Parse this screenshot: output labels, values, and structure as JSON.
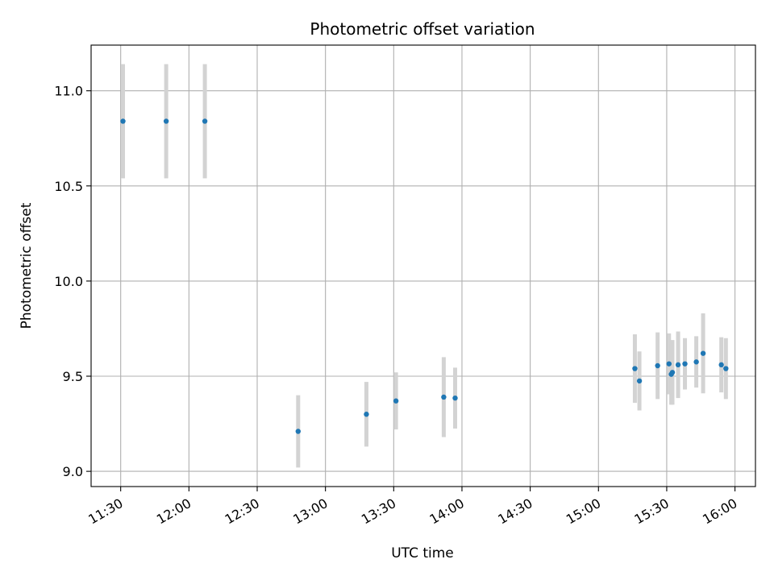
{
  "chart_data": {
    "type": "scatter",
    "title": "Photometric offset variation",
    "xlabel": "UTC time",
    "ylabel": "Photometric offset",
    "x_ticks": [
      "11:30",
      "12:00",
      "12:30",
      "13:00",
      "13:30",
      "14:00",
      "14:30",
      "15:00",
      "15:30",
      "16:00"
    ],
    "y_ticks": [
      "9.0",
      "9.5",
      "10.0",
      "10.5",
      "11.0"
    ],
    "xlim": [
      "11:17",
      "16:09"
    ],
    "ylim": [
      8.92,
      11.24
    ],
    "grid": true,
    "point_color": "#1f77b4",
    "errorbar_color": "#d3d3d3",
    "points": [
      {
        "x": "11:31",
        "y": 10.84,
        "err": 0.3
      },
      {
        "x": "11:50",
        "y": 10.84,
        "err": 0.3
      },
      {
        "x": "12:07",
        "y": 10.84,
        "err": 0.3
      },
      {
        "x": "12:48",
        "y": 9.21,
        "err": 0.19
      },
      {
        "x": "13:18",
        "y": 9.3,
        "err": 0.17
      },
      {
        "x": "13:31",
        "y": 9.37,
        "err": 0.15
      },
      {
        "x": "13:52",
        "y": 9.39,
        "err": 0.21
      },
      {
        "x": "13:57",
        "y": 9.385,
        "err": 0.16
      },
      {
        "x": "15:16",
        "y": 9.54,
        "err": 0.18
      },
      {
        "x": "15:18",
        "y": 9.475,
        "err": 0.155
      },
      {
        "x": "15:26",
        "y": 9.555,
        "err": 0.175
      },
      {
        "x": "15:31",
        "y": 9.565,
        "err": 0.16
      },
      {
        "x": "15:32",
        "y": 9.51,
        "err": 0.16
      },
      {
        "x": "15:32.5",
        "y": 9.52,
        "err": 0.17
      },
      {
        "x": "15:35",
        "y": 9.56,
        "err": 0.175
      },
      {
        "x": "15:38",
        "y": 9.565,
        "err": 0.135
      },
      {
        "x": "15:43",
        "y": 9.575,
        "err": 0.135
      },
      {
        "x": "15:46",
        "y": 9.62,
        "err": 0.21
      },
      {
        "x": "15:54",
        "y": 9.56,
        "err": 0.145
      },
      {
        "x": "15:56",
        "y": 9.54,
        "err": 0.16
      }
    ]
  }
}
